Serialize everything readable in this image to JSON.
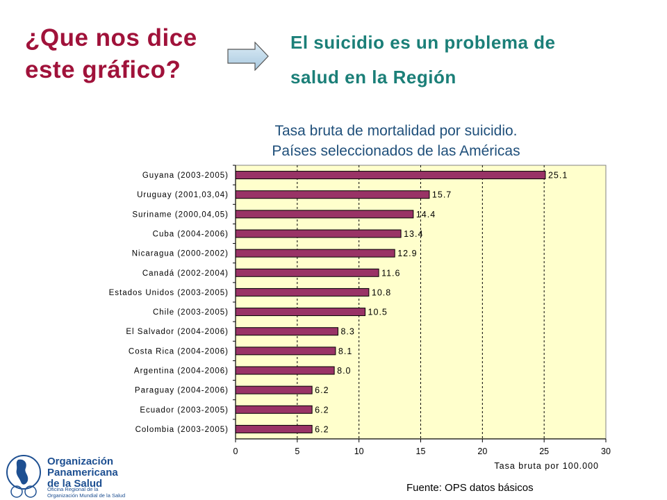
{
  "header": {
    "question_line1": "¿Que nos dice",
    "question_line2": "este gráfico?",
    "answer_line1": "El suicidio es un problema de",
    "answer_line2": "salud en la Región"
  },
  "colors": {
    "question": "#a0123a",
    "answer": "#1b7f78",
    "title": "#1f4f7a",
    "bar": "#993366",
    "plot_background": "#ffffcc"
  },
  "chart_data": {
    "type": "bar",
    "orientation": "horizontal",
    "title_line1": "Tasa bruta de mortalidad por suicidio.",
    "title_line2": "Países seleccionados de las Américas",
    "xlabel": "Tasa bruta por 100.000",
    "ylabel": "",
    "xlim": [
      0,
      30
    ],
    "xticks": [
      0,
      5,
      10,
      15,
      20,
      25,
      30
    ],
    "grid": "vertical dashed",
    "categories": [
      "Guyana (2003-2005)",
      "Uruguay (2001,03,04)",
      "Suriname (2000,04,05)",
      "Cuba (2004-2006)",
      "Nicaragua (2000-2002)",
      "Canadá (2002-2004)",
      "Estados Unidos (2003-2005)",
      "Chile (2003-2005)",
      "El Salvador (2004-2006)",
      "Costa Rica (2004-2006)",
      "Argentina (2004-2006)",
      "Paraguay (2004-2006)",
      "Ecuador (2003-2005)",
      "Colombia (2003-2005)"
    ],
    "values": [
      25.1,
      15.7,
      14.4,
      13.4,
      12.9,
      11.6,
      10.8,
      10.5,
      8.3,
      8.1,
      8.0,
      6.2,
      6.2,
      6.2
    ],
    "value_labels": [
      "25.1",
      "15.7",
      "14.4",
      "13.4",
      "12.9",
      "11.6",
      "10.8",
      "10.5",
      "8.3",
      "8.1",
      "8.0",
      "6.2",
      "6.2",
      "6.2"
    ]
  },
  "footer": {
    "source": "Fuente: OPS datos básicos",
    "logo_line1": "Organización",
    "logo_line2": "Panamericana",
    "logo_line3": "de la Salud",
    "logo_small1": "Oficina Regional de la",
    "logo_small2": "Organización Mundial de la Salud"
  }
}
